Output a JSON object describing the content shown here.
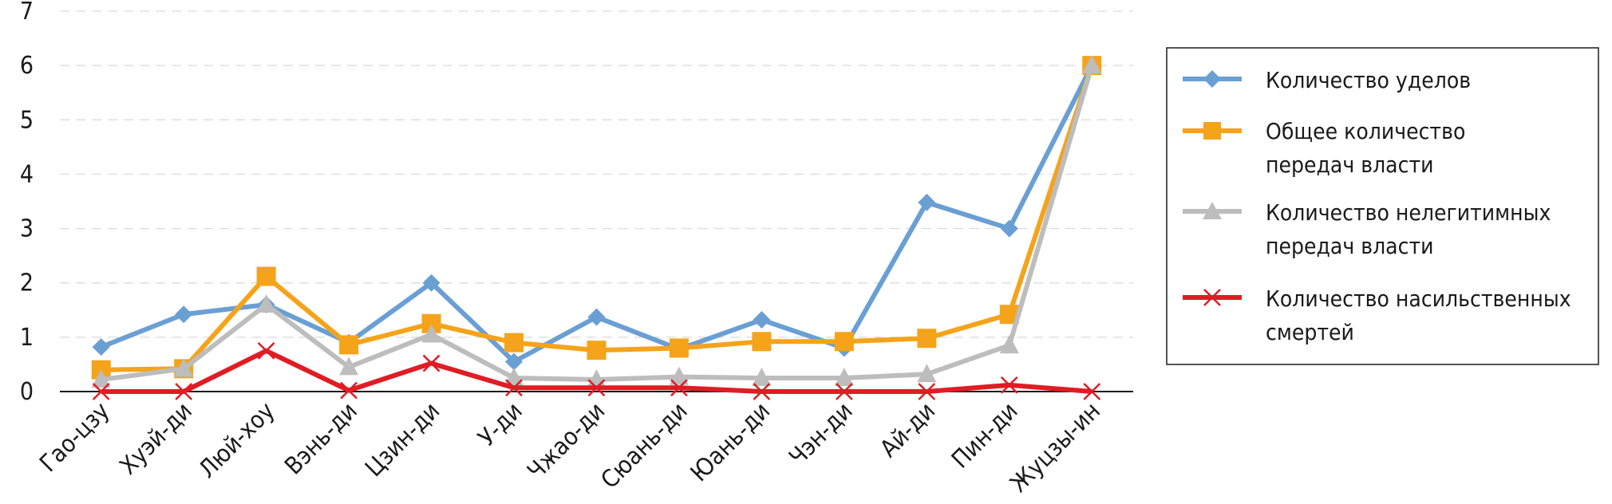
{
  "chart_data": {
    "type": "line",
    "categories": [
      "Гао-цзу",
      "Хуэй-ди",
      "Люй-хоу",
      "Вэнь-ди",
      "Цзин-ди",
      "У-ди",
      "Чжао-ди",
      "Сюань-ди",
      "Юань-ди",
      "Чэн-ди",
      "Ай-ди",
      "Пин-ди",
      "Жуцзы-ин"
    ],
    "ylim": [
      0,
      7
    ],
    "yticks": [
      "0",
      "1",
      "2",
      "3",
      "4",
      "5",
      "6",
      "7"
    ],
    "grid": true,
    "legend_position": "right",
    "series": [
      {
        "name": "Количество уделов",
        "color": "#6a9fd4",
        "marker": "diamond",
        "values": [
          0.82,
          1.42,
          1.6,
          0.9,
          2.0,
          0.55,
          1.37,
          0.78,
          1.32,
          0.8,
          3.48,
          3.0,
          6.0
        ]
      },
      {
        "name": "Общее количество передач власти",
        "color": "#f5a31a",
        "marker": "square",
        "values": [
          0.4,
          0.42,
          2.12,
          0.86,
          1.25,
          0.9,
          0.76,
          0.8,
          0.92,
          0.92,
          0.98,
          1.42,
          6.0
        ]
      },
      {
        "name": "Количество нелегитимных передач власти",
        "color": "#bdbdbd",
        "marker": "triangle",
        "values": [
          0.22,
          0.42,
          1.6,
          0.45,
          1.05,
          0.25,
          0.22,
          0.27,
          0.25,
          0.25,
          0.32,
          0.85,
          6.0
        ]
      },
      {
        "name": "Количество насильственных смертей",
        "color": "#e01c24",
        "marker": "cross",
        "values": [
          0.0,
          0.0,
          0.75,
          0.02,
          0.52,
          0.07,
          0.07,
          0.07,
          0.0,
          0.0,
          0.0,
          0.12,
          0.0
        ]
      }
    ]
  },
  "legend": {
    "items": [
      {
        "line1": "Количество уделов",
        "line2": ""
      },
      {
        "line1": "Общее количество",
        "line2": "передач власти"
      },
      {
        "line1": "Количество нелегитимных",
        "line2": "передач власти"
      },
      {
        "line1": "Количество насильственных",
        "line2": "смертей"
      }
    ]
  }
}
